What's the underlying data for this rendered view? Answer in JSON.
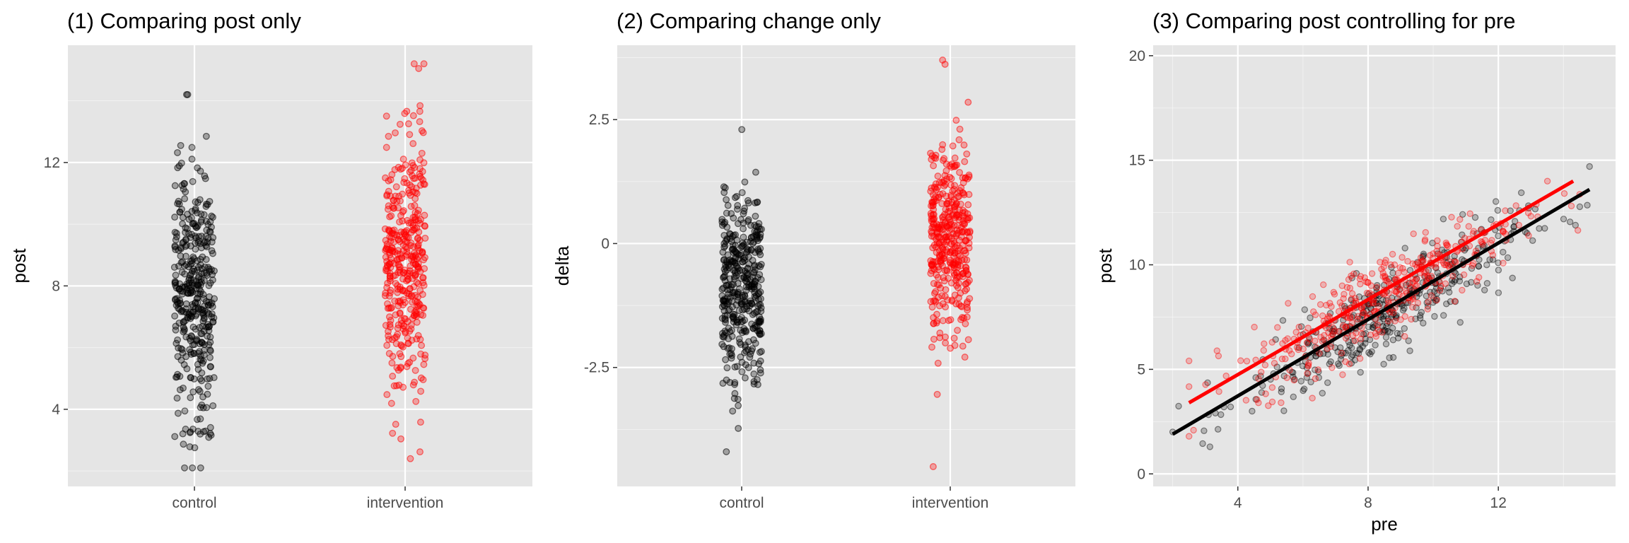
{
  "colors": {
    "panel_background": "#e5e5e5",
    "grid": "#ffffff",
    "control": "#000000",
    "intervention": "#ff0000"
  },
  "chart_data": [
    {
      "type": "scatter",
      "title": "(1) Comparing post only",
      "xlabel": "",
      "ylabel": "post",
      "x_axis": "categorical",
      "categories": [
        "control",
        "intervention"
      ],
      "ylim": [
        1.5,
        15.8
      ],
      "yticks": [
        4,
        8,
        12
      ],
      "grid": true,
      "points": {
        "control": {
          "n": 400,
          "mean": 7.6,
          "sd": 2.1,
          "min": 2.1,
          "max": 14.2,
          "jitter_width": 0.1
        },
        "intervention": {
          "n": 400,
          "mean": 8.6,
          "sd": 2.1,
          "min": 2.4,
          "max": 15.2,
          "jitter_width": 0.1
        }
      }
    },
    {
      "type": "scatter",
      "title": "(2) Comparing change only",
      "xlabel": "",
      "ylabel": "delta",
      "x_axis": "categorical",
      "categories": [
        "control",
        "intervention"
      ],
      "ylim": [
        -4.9,
        4.0
      ],
      "yticks": [
        -2.5,
        0.0,
        2.5
      ],
      "grid": true,
      "points": {
        "control": {
          "n": 400,
          "mean": -0.9,
          "sd": 1.0,
          "min": -4.2,
          "max": 2.3,
          "jitter_width": 0.1
        },
        "intervention": {
          "n": 400,
          "mean": 0.1,
          "sd": 1.0,
          "min": -4.5,
          "max": 3.7,
          "jitter_width": 0.1
        }
      }
    },
    {
      "type": "scatter",
      "title": "(3) Comparing post controlling for pre",
      "xlabel": "pre",
      "ylabel": "post",
      "xlim": [
        1.4,
        15.6
      ],
      "ylim": [
        -0.6,
        20.5
      ],
      "xticks": [
        4,
        8,
        12
      ],
      "yticks": [
        0,
        5,
        10,
        15,
        20
      ],
      "grid": true,
      "points": {
        "control": {
          "n": 400,
          "x_mean": 8.5,
          "x_sd": 2.1,
          "x_min": 2.0,
          "x_max": 14.8,
          "slope": 0.9,
          "intercept": 0.0,
          "resid_sd": 1.0
        },
        "intervention": {
          "n": 400,
          "x_mean": 8.5,
          "x_sd": 2.1,
          "x_min": 2.5,
          "x_max": 14.5,
          "slope": 0.88,
          "intercept": 1.1,
          "resid_sd": 1.0
        }
      },
      "fit_lines": [
        {
          "group": "control",
          "x": [
            2.0,
            14.8
          ],
          "y": [
            1.9,
            13.6
          ]
        },
        {
          "group": "intervention",
          "x": [
            2.5,
            14.3
          ],
          "y": [
            3.4,
            14.0
          ]
        }
      ]
    }
  ]
}
